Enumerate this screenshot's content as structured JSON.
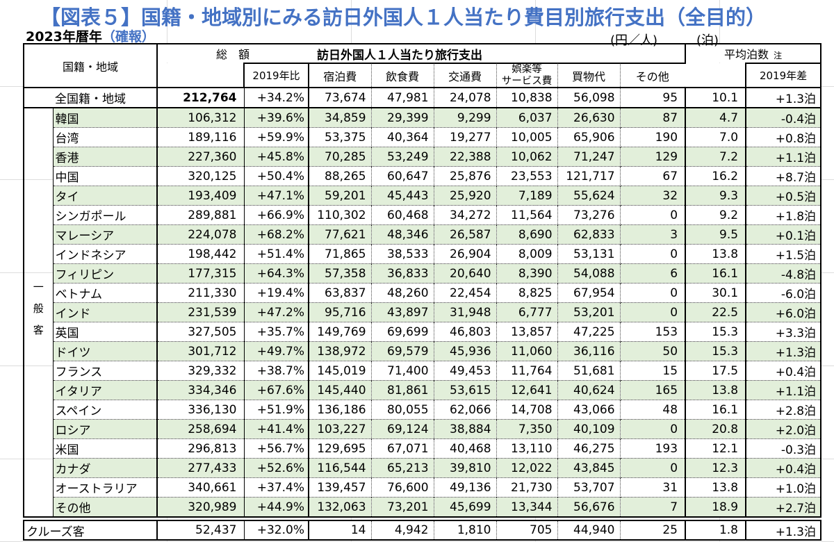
{
  "title": "【図表５】国籍・地域別にみる訪日外国人１人当たり費目別旅行支出（全目的）",
  "subtitle": {
    "year": "2023年暦年",
    "note": "（確報）"
  },
  "units": {
    "per_person": "(円／人)",
    "nights": "(泊)"
  },
  "colors": {
    "accent_blue": "#4472c4",
    "row_green": "#e2efda"
  },
  "header": {
    "col_region": "国籍・地域",
    "col_total": "総　額",
    "col_total_sub": "2019年比",
    "group_spending": "訪日外国人１人当たり旅行支出",
    "cols": {
      "lodging": "宿泊費",
      "food": "飲食費",
      "transport": "交通費",
      "ent1": "娯楽等",
      "ent2": "サービス費",
      "shopping": "買物代",
      "other": "その他"
    },
    "col_nights": "平均泊数",
    "col_nights_note": "注",
    "col_nights_sub": "2019年差"
  },
  "side_label": "一般客",
  "total_row": {
    "label": "全国籍・地域",
    "total": "212,764",
    "vs2019": "+34.2%",
    "lodging": "73,674",
    "food": "47,981",
    "transport": "24,078",
    "entertainment": "10,838",
    "shopping": "56,098",
    "other": "95",
    "nights": "10.1",
    "nights_diff": "+1.3泊"
  },
  "rows": [
    {
      "label": "韓国",
      "total": "106,312",
      "vs2019": "+39.6%",
      "lodging": "34,859",
      "food": "29,399",
      "transport": "9,299",
      "entertainment": "6,037",
      "shopping": "26,630",
      "other": "87",
      "nights": "4.7",
      "nights_diff": "-0.4泊",
      "shaded": true
    },
    {
      "label": "台湾",
      "total": "189,116",
      "vs2019": "+59.9%",
      "lodging": "53,375",
      "food": "40,364",
      "transport": "19,277",
      "entertainment": "10,005",
      "shopping": "65,906",
      "other": "190",
      "nights": "7.0",
      "nights_diff": "+0.8泊",
      "shaded": false
    },
    {
      "label": "香港",
      "total": "227,360",
      "vs2019": "+45.8%",
      "lodging": "70,285",
      "food": "53,249",
      "transport": "22,388",
      "entertainment": "10,062",
      "shopping": "71,247",
      "other": "129",
      "nights": "7.2",
      "nights_diff": "+1.1泊",
      "shaded": true
    },
    {
      "label": "中国",
      "total": "320,125",
      "vs2019": "+50.4%",
      "lodging": "88,265",
      "food": "60,647",
      "transport": "25,876",
      "entertainment": "23,553",
      "shopping": "121,717",
      "other": "67",
      "nights": "16.2",
      "nights_diff": "+8.7泊",
      "shaded": false
    },
    {
      "label": "タイ",
      "total": "193,409",
      "vs2019": "+47.1%",
      "lodging": "59,201",
      "food": "45,443",
      "transport": "25,920",
      "entertainment": "7,189",
      "shopping": "55,624",
      "other": "32",
      "nights": "9.3",
      "nights_diff": "+0.5泊",
      "shaded": true
    },
    {
      "label": "シンガポール",
      "total": "289,881",
      "vs2019": "+66.9%",
      "lodging": "110,302",
      "food": "60,468",
      "transport": "34,272",
      "entertainment": "11,564",
      "shopping": "73,276",
      "other": "0",
      "nights": "9.2",
      "nights_diff": "+1.8泊",
      "shaded": false
    },
    {
      "label": "マレーシア",
      "total": "224,078",
      "vs2019": "+68.2%",
      "lodging": "77,621",
      "food": "48,346",
      "transport": "26,587",
      "entertainment": "8,690",
      "shopping": "62,833",
      "other": "3",
      "nights": "9.5",
      "nights_diff": "+0.1泊",
      "shaded": true
    },
    {
      "label": "インドネシア",
      "total": "198,442",
      "vs2019": "+51.4%",
      "lodging": "71,865",
      "food": "38,533",
      "transport": "26,904",
      "entertainment": "8,009",
      "shopping": "53,131",
      "other": "0",
      "nights": "13.8",
      "nights_diff": "+1.5泊",
      "shaded": false
    },
    {
      "label": "フィリピン",
      "total": "177,315",
      "vs2019": "+64.3%",
      "lodging": "57,358",
      "food": "36,833",
      "transport": "20,640",
      "entertainment": "8,390",
      "shopping": "54,088",
      "other": "6",
      "nights": "16.1",
      "nights_diff": "-4.8泊",
      "shaded": true
    },
    {
      "label": "ベトナム",
      "total": "211,330",
      "vs2019": "+19.4%",
      "lodging": "63,837",
      "food": "48,260",
      "transport": "22,454",
      "entertainment": "8,825",
      "shopping": "67,954",
      "other": "0",
      "nights": "30.1",
      "nights_diff": "-6.0泊",
      "shaded": false
    },
    {
      "label": "インド",
      "total": "231,539",
      "vs2019": "+47.2%",
      "lodging": "95,716",
      "food": "43,897",
      "transport": "31,948",
      "entertainment": "6,777",
      "shopping": "53,201",
      "other": "0",
      "nights": "22.5",
      "nights_diff": "+6.0泊",
      "shaded": true
    },
    {
      "label": "英国",
      "total": "327,505",
      "vs2019": "+35.7%",
      "lodging": "149,769",
      "food": "69,699",
      "transport": "46,803",
      "entertainment": "13,857",
      "shopping": "47,225",
      "other": "153",
      "nights": "15.3",
      "nights_diff": "+3.3泊",
      "shaded": false
    },
    {
      "label": "ドイツ",
      "total": "301,712",
      "vs2019": "+49.7%",
      "lodging": "138,972",
      "food": "69,579",
      "transport": "45,936",
      "entertainment": "11,060",
      "shopping": "36,116",
      "other": "50",
      "nights": "15.3",
      "nights_diff": "+1.3泊",
      "shaded": true
    },
    {
      "label": "フランス",
      "total": "329,332",
      "vs2019": "+38.7%",
      "lodging": "145,019",
      "food": "71,400",
      "transport": "49,453",
      "entertainment": "11,764",
      "shopping": "51,681",
      "other": "15",
      "nights": "17.5",
      "nights_diff": "+0.4泊",
      "shaded": false
    },
    {
      "label": "イタリア",
      "total": "334,346",
      "vs2019": "+67.6%",
      "lodging": "145,440",
      "food": "81,861",
      "transport": "53,615",
      "entertainment": "12,641",
      "shopping": "40,624",
      "other": "165",
      "nights": "13.8",
      "nights_diff": "+1.1泊",
      "shaded": true
    },
    {
      "label": "スペイン",
      "total": "336,130",
      "vs2019": "+51.9%",
      "lodging": "136,186",
      "food": "80,055",
      "transport": "62,066",
      "entertainment": "14,708",
      "shopping": "43,066",
      "other": "48",
      "nights": "16.1",
      "nights_diff": "+2.8泊",
      "shaded": false
    },
    {
      "label": "ロシア",
      "total": "258,694",
      "vs2019": "+41.4%",
      "lodging": "103,227",
      "food": "69,124",
      "transport": "38,884",
      "entertainment": "7,350",
      "shopping": "40,109",
      "other": "0",
      "nights": "20.8",
      "nights_diff": "+2.0泊",
      "shaded": true
    },
    {
      "label": "米国",
      "total": "296,813",
      "vs2019": "+56.7%",
      "lodging": "129,695",
      "food": "67,071",
      "transport": "40,468",
      "entertainment": "13,110",
      "shopping": "46,275",
      "other": "193",
      "nights": "12.1",
      "nights_diff": "-0.3泊",
      "shaded": false
    },
    {
      "label": "カナダ",
      "total": "277,433",
      "vs2019": "+52.6%",
      "lodging": "116,544",
      "food": "65,213",
      "transport": "39,810",
      "entertainment": "12,022",
      "shopping": "43,845",
      "other": "0",
      "nights": "12.3",
      "nights_diff": "+0.4泊",
      "shaded": true
    },
    {
      "label": "オーストラリア",
      "total": "340,661",
      "vs2019": "+37.4%",
      "lodging": "139,457",
      "food": "76,600",
      "transport": "49,136",
      "entertainment": "21,730",
      "shopping": "53,707",
      "other": "31",
      "nights": "13.8",
      "nights_diff": "+1.0泊",
      "shaded": false
    },
    {
      "label": "その他",
      "total": "320,989",
      "vs2019": "+44.9%",
      "lodging": "132,063",
      "food": "73,201",
      "transport": "45,699",
      "entertainment": "13,344",
      "shopping": "56,676",
      "other": "7",
      "nights": "18.9",
      "nights_diff": "+2.7泊",
      "shaded": true
    }
  ],
  "cruise_row": {
    "label": "クルーズ客",
    "total": "52,437",
    "vs2019": "+32.0%",
    "lodging": "14",
    "food": "4,942",
    "transport": "1,810",
    "entertainment": "705",
    "shopping": "44,940",
    "other": "25",
    "nights": "1.8",
    "nights_diff": "+1.3泊"
  }
}
